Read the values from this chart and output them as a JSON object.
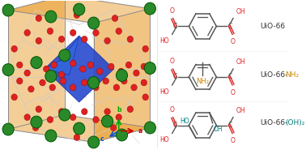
{
  "bg_color": "#ffffff",
  "orange_color": "#e8941a",
  "blue_color": "#2244cc",
  "green_color": "#2a8a2a",
  "red_color": "#dd2222",
  "dark_color": "#555555",
  "nh2_color": "#cc8800",
  "oh_color": "#008080",
  "cooh_red": "#dd2222",
  "ring_dark": "#555555",
  "mol_labels": [
    "UiO-66",
    "UiO-66-",
    "NH₂",
    "UiO-66-",
    "(OH)₂"
  ],
  "label_color_dark": "#333333",
  "label_color_nh2": "#cc8800",
  "label_color_oh": "#008080"
}
